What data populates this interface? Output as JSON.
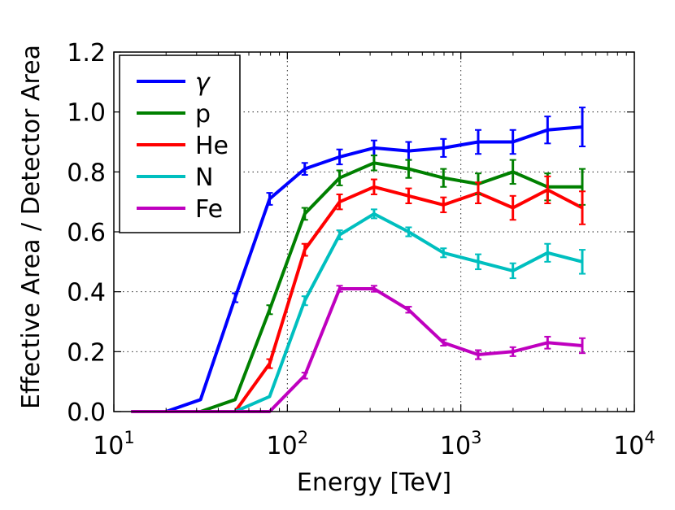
{
  "chart_data": {
    "type": "line",
    "xscale": "log",
    "xlim": [
      10,
      10000
    ],
    "ylim": [
      0,
      1.2
    ],
    "xlabel": "Energy [TeV]",
    "ylabel": "Effective Area / Detector Area",
    "grid": true,
    "legend_position": "top-left",
    "x_ticks": [
      {
        "value": 10,
        "base": "10",
        "exp": "1"
      },
      {
        "value": 100,
        "base": "10",
        "exp": "2"
      },
      {
        "value": 1000,
        "base": "10",
        "exp": "3"
      },
      {
        "value": 10000,
        "base": "10",
        "exp": "4"
      }
    ],
    "y_ticks": [
      "0.0",
      "0.2",
      "0.4",
      "0.6",
      "0.8",
      "1.0",
      "1.2"
    ],
    "y_tick_values": [
      0,
      0.2,
      0.4,
      0.6,
      0.8,
      1.0,
      1.2
    ],
    "series": [
      {
        "name": "γ",
        "color": "#0000ff",
        "x": [
          12.6,
          20,
          31.6,
          50,
          79,
          126,
          200,
          316,
          500,
          794,
          1259,
          1995,
          3162,
          5012
        ],
        "y": [
          0,
          0,
          0.04,
          0.38,
          0.71,
          0.81,
          0.85,
          0.88,
          0.87,
          0.88,
          0.9,
          0.9,
          0.94,
          0.95
        ],
        "err": [
          0,
          0,
          0,
          0.015,
          0.02,
          0.02,
          0.025,
          0.025,
          0.03,
          0.03,
          0.04,
          0.04,
          0.045,
          0.065
        ]
      },
      {
        "name": "p",
        "color": "#008000",
        "x": [
          12.6,
          20,
          31.6,
          50,
          79,
          126,
          200,
          316,
          500,
          794,
          1259,
          1995,
          3162,
          5012
        ],
        "y": [
          0,
          0,
          0,
          0.04,
          0.34,
          0.66,
          0.78,
          0.83,
          0.81,
          0.78,
          0.76,
          0.8,
          0.75,
          0.75
        ],
        "err": [
          0,
          0,
          0,
          0,
          0.015,
          0.02,
          0.025,
          0.025,
          0.03,
          0.03,
          0.035,
          0.04,
          0.045,
          0.06
        ]
      },
      {
        "name": "He",
        "color": "#ff0000",
        "x": [
          12.6,
          20,
          31.6,
          50,
          79,
          126,
          200,
          316,
          500,
          794,
          1259,
          1995,
          3162,
          5012
        ],
        "y": [
          0,
          0,
          0,
          0,
          0.16,
          0.54,
          0.7,
          0.75,
          0.72,
          0.69,
          0.73,
          0.68,
          0.74,
          0.68
        ],
        "err": [
          0,
          0,
          0,
          0,
          0.015,
          0.02,
          0.025,
          0.025,
          0.025,
          0.025,
          0.035,
          0.04,
          0.045,
          0.055
        ]
      },
      {
        "name": "N",
        "color": "#00bfbf",
        "x": [
          12.6,
          20,
          31.6,
          50,
          79,
          126,
          200,
          316,
          500,
          794,
          1259,
          1995,
          3162,
          5012
        ],
        "y": [
          0,
          0,
          0,
          0,
          0.05,
          0.37,
          0.59,
          0.66,
          0.6,
          0.53,
          0.5,
          0.47,
          0.53,
          0.5
        ],
        "err": [
          0,
          0,
          0,
          0,
          0,
          0.015,
          0.015,
          0.015,
          0.015,
          0.015,
          0.025,
          0.025,
          0.03,
          0.04
        ]
      },
      {
        "name": "Fe",
        "color": "#bf00bf",
        "x": [
          12.6,
          20,
          31.6,
          50,
          79,
          126,
          200,
          316,
          500,
          794,
          1259,
          1995,
          3162,
          5012
        ],
        "y": [
          0,
          0,
          0,
          0,
          0,
          0.12,
          0.41,
          0.41,
          0.34,
          0.23,
          0.19,
          0.2,
          0.23,
          0.22
        ],
        "err": [
          0,
          0,
          0,
          0,
          0,
          0.01,
          0.01,
          0.01,
          0.01,
          0.01,
          0.015,
          0.015,
          0.02,
          0.025
        ]
      }
    ]
  }
}
